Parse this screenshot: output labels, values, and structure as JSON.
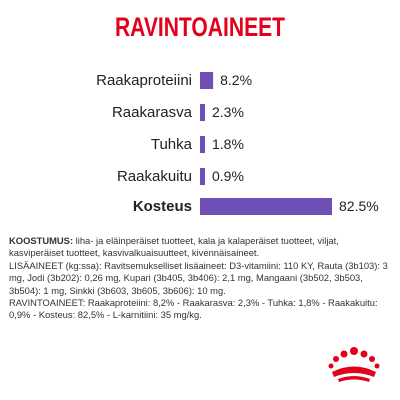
{
  "title": "RAVINTOAINEET",
  "chart_data": {
    "type": "bar",
    "orientation": "horizontal",
    "categories": [
      "Raakaproteiini",
      "Raakarasva",
      "Tuhka",
      "Raakakuitu",
      "Kosteus"
    ],
    "values": [
      8.2,
      2.3,
      1.8,
      0.9,
      82.5
    ],
    "value_labels": [
      "8.2%",
      "2.3%",
      "1.8%",
      "0.9%",
      "82.5%"
    ],
    "unit": "%",
    "bar_color": "#6e4fb5",
    "xlim": [
      0,
      100
    ]
  },
  "composition": {
    "koostumus_label": "KOOSTUMUS:",
    "koostumus_text": " liha- ja eläinperäiset tuotteet, kala ja kalaperäiset tuotteet, viljat, kasviperäiset tuotteet, kasvivalkuaisuutteet, kivennäisaineet.",
    "lisaaineet_text": "LISÄAINEET (kg:ssa): Ravitsemukselliset lisäaineet: D3-vitamiini: 110 KY, Rauta (3b103): 3 mg, Jodi (3b202): 0,26 mg, Kupari (3b405, 3b406): 2,1 mg, Mangaani (3b502, 3b503, 3b504): 1 mg, Sinkki (3b603, 3b605, 3b606): 10 mg.",
    "ravintoaineet_text": "RAVINTOAINEET: Raakaproteiini: 8,2% - Raakarasva: 2,3% - Tuhka: 1,8% - Raakakuitu: 0,9% - Kosteus: 82,5% - L-karnitiini: 35 mg/kg."
  },
  "colors": {
    "title": "#e2001a",
    "bar": "#6e4fb5",
    "logo": "#e2001a"
  },
  "logo": {
    "icon": "royal-canin-crown-logo"
  }
}
